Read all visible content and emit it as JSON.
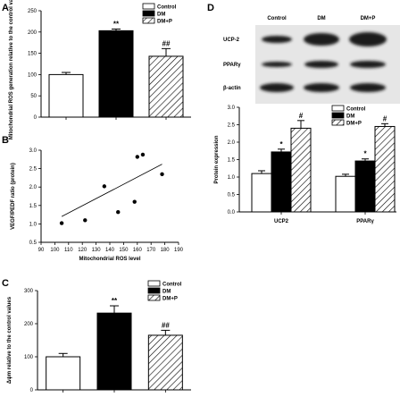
{
  "chart_data": [
    {
      "panel": "A",
      "type": "bar",
      "ylabel": "Mitochondrial ROS generation relative to the control values",
      "ylim": [
        0,
        250
      ],
      "yticks": [
        0,
        50,
        100,
        150,
        200,
        250
      ],
      "categories": [
        "Control",
        "DM",
        "DM+P"
      ],
      "values": [
        100,
        203,
        143
      ],
      "errors": [
        5,
        4,
        18
      ],
      "annotations": [
        "",
        "**",
        "##"
      ],
      "legend": [
        "Control",
        "DM",
        "DM+P"
      ]
    },
    {
      "panel": "B",
      "type": "scatter",
      "xlabel": "Mitochondrial ROS level",
      "ylabel": "VEGF/PEDF ratio (protein)",
      "xlim": [
        90,
        190
      ],
      "ylim": [
        0.5,
        3.0
      ],
      "xticks": [
        90,
        100,
        110,
        120,
        130,
        140,
        150,
        160,
        170,
        180,
        190
      ],
      "yticks": [
        0.5,
        1.0,
        1.5,
        2.0,
        2.5,
        3.0
      ],
      "x": [
        105,
        122,
        136,
        146,
        158,
        160,
        164,
        178
      ],
      "y": [
        1.02,
        1.1,
        2.02,
        1.32,
        1.6,
        2.82,
        2.88,
        2.35
      ],
      "trendline": [
        [
          105,
          1.2
        ],
        [
          178,
          2.62
        ]
      ]
    },
    {
      "panel": "C",
      "type": "bar",
      "ylabel": "Δψm relative to the control values",
      "ylim": [
        0,
        300
      ],
      "yticks": [
        0,
        100,
        200,
        300
      ],
      "categories": [
        "Control",
        "DM",
        "DM+P"
      ],
      "values": [
        100,
        232,
        165
      ],
      "errors": [
        10,
        22,
        15
      ],
      "annotations": [
        "",
        "**",
        "##"
      ],
      "legend": [
        "Control",
        "DM",
        "DM+P"
      ]
    },
    {
      "panel": "D",
      "type": "bar",
      "ylabel": "Protein expression",
      "ylim": [
        0,
        3.0
      ],
      "yticks": [
        0,
        0.5,
        1.0,
        1.5,
        2.0,
        2.5,
        3.0
      ],
      "categories": [
        "UCP2",
        "PPARγ"
      ],
      "series": [
        {
          "name": "Control",
          "values": [
            1.1,
            1.02
          ],
          "errors": [
            0.08,
            0.06
          ]
        },
        {
          "name": "DM",
          "values": [
            1.72,
            1.46
          ],
          "errors": [
            0.08,
            0.06
          ]
        },
        {
          "name": "DM+P",
          "values": [
            2.4,
            2.45
          ],
          "errors": [
            0.22,
            0.08
          ]
        }
      ],
      "annotations": [
        [
          "",
          "*",
          "#"
        ],
        [
          "",
          "*",
          "#"
        ]
      ],
      "blot": {
        "columns": [
          "Control",
          "DM",
          "DM+P"
        ],
        "rows": [
          "UCP-2",
          "PPARγ",
          "β-actin"
        ]
      }
    }
  ],
  "panel_letters": {
    "a": "A",
    "b": "B",
    "c": "C",
    "d": "D"
  },
  "colors": {
    "control": "#ffffff",
    "dm": "#000000",
    "dmp": "hatched",
    "blot_bg": "#e6e6e6",
    "band": "#1a1a1a"
  }
}
